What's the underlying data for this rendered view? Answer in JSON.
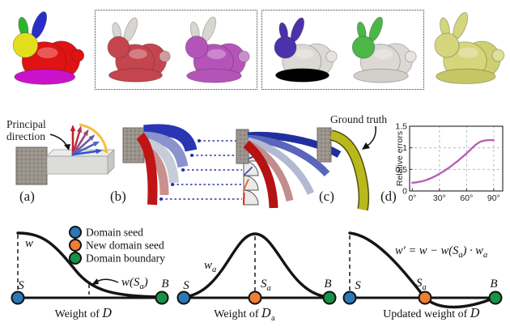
{
  "figure": {
    "background": "#ffffff"
  },
  "top_row": {
    "bunnies": [
      {
        "name": "segmented",
        "parts": {
          "ear_left": "#2db42d",
          "ear_right": "#2a2ec8",
          "head": "#e3df1d",
          "body": "#df1313",
          "rear": "#df1313",
          "belly": "#cb12cb",
          "tail": "#df1313"
        }
      },
      {
        "name": "red",
        "parts": {
          "ear_left": "#d9d5d1",
          "ear_right": "#d9d5d1",
          "head": "#c4454e",
          "body": "#c4454e",
          "rear": "#c4454e",
          "belly": "#c4454e",
          "tail": "#cf9ba0"
        }
      },
      {
        "name": "magenta",
        "parts": {
          "ear_left": "#d9d5d1",
          "ear_right": "#d9d5d1",
          "head": "#b554b8",
          "body": "#b554b8",
          "rear": "#b554b8",
          "belly": "#b554b8",
          "tail": "#c98fcb"
        }
      },
      {
        "name": "blue-head",
        "parts": {
          "ear_left": "#4b32aa",
          "ear_right": "#4b32aa",
          "head": "#4b32aa",
          "body": "#dcd8d4",
          "rear": "#dcd8d4",
          "belly": "#d2cecа",
          "tail": "#e6e3e0"
        }
      },
      {
        "name": "green-head",
        "parts": {
          "ear_left": "#4cb647",
          "ear_right": "#4cb647",
          "head": "#4cb647",
          "body": "#dcd8d4",
          "rear": "#dcd8d4",
          "belly": "#d2ceca",
          "tail": "#e6e3e0"
        }
      },
      {
        "name": "yellow",
        "parts": {
          "ear_left": "#d5d57c",
          "ear_right": "#d5d57c",
          "head": "#d5d57c",
          "body": "#d5d57c",
          "rear": "#cfcf72",
          "belly": "#c6c666",
          "tail": "#dfdf96"
        }
      }
    ]
  },
  "middle_row": {
    "panel_labels": [
      "(a)",
      "(b)",
      "(c)",
      "(d)"
    ],
    "panel_a": {
      "annotation": {
        "line1": "Principal",
        "line2": "direction"
      },
      "arrow_colors": [
        "#c81e1e",
        "#bb3050",
        "#9a4a80",
        "#715ba6",
        "#4e62c2",
        "#3052cf"
      ],
      "arrow_angles_deg": [
        90,
        74,
        58,
        42,
        26,
        8
      ],
      "rotation_arc_color": "#f2c23e"
    },
    "panel_b": {
      "beam_colors": [
        "#2a35b4",
        "#8a93cd",
        "#c7ccd9",
        "#c9908f",
        "#bf1515"
      ],
      "connector_color": "#2633a8",
      "gauges": [
        {
          "angle": 3,
          "color": "#1d2a66"
        },
        {
          "angle": 25,
          "color": "#2936ae"
        },
        {
          "angle": 45,
          "color": "#3d52c4"
        },
        {
          "angle": 66,
          "color": "#e2622d"
        },
        {
          "angle": 88,
          "color": "#cc1212"
        }
      ]
    },
    "panel_c": {
      "annotation": "Ground truth",
      "beam_colors": [
        "#212f9e",
        "#5a66bb",
        "#b2bad2",
        "#c18d8d",
        "#b51212"
      ],
      "ground_truth_color": "#b9b91e"
    }
  },
  "chart_data": {
    "type": "line",
    "title": "",
    "xlabel": "",
    "ylabel": "Relative errors",
    "x": [
      0,
      5,
      10,
      15,
      20,
      25,
      30,
      35,
      40,
      45,
      50,
      55,
      60,
      65,
      70,
      75,
      80,
      85,
      90
    ],
    "y": [
      0.19,
      0.2,
      0.22,
      0.25,
      0.29,
      0.34,
      0.4,
      0.46,
      0.53,
      0.61,
      0.69,
      0.78,
      0.87,
      0.97,
      1.07,
      1.14,
      1.17,
      1.18,
      1.18
    ],
    "x_ticks": [
      0,
      30,
      60,
      90
    ],
    "x_tick_labels": [
      "0°",
      "30°",
      "60°",
      "90°"
    ],
    "y_ticks": [
      0,
      0.5,
      1,
      1.5
    ],
    "y_tick_labels": [
      "0",
      "0.5",
      "1",
      "1.5"
    ],
    "xlim": [
      -3,
      100
    ],
    "ylim": [
      0,
      1.5
    ],
    "grid": "dashed",
    "legend_position": "none",
    "line_color": "#b55bb3"
  },
  "bottom_row": {
    "legend": {
      "items": [
        {
          "label": "Domain seed",
          "color": "#2a78b8"
        },
        {
          "label": "New domain seed",
          "color": "#ef7d32"
        },
        {
          "label": "Domain boundary",
          "color": "#169347"
        }
      ]
    },
    "diagram1": {
      "curve_label": "w",
      "seed_label": "S",
      "boundary_label": "B",
      "annotation": {
        "p1": "w(S",
        "sub": "a",
        "p2": ")"
      },
      "caption": {
        "text": "Weight of ",
        "domain": "D"
      }
    },
    "diagram2": {
      "curve_label": {
        "base": "w",
        "sub": "a"
      },
      "seed_label": "S",
      "new_seed_label": {
        "base": "S",
        "sub": "a"
      },
      "boundary_label": "B",
      "caption": {
        "text": "Weight of ",
        "domain": "D",
        "domain_sub": "a"
      }
    },
    "diagram3": {
      "formula": {
        "p1": "w′ = w − w(S",
        "s1": "a",
        "p2": ") · w",
        "s2": "a"
      },
      "seed_label": "S",
      "new_seed_label": {
        "base": "S",
        "sub": "a"
      },
      "boundary_label": "B",
      "caption": {
        "text": "Updated weight of ",
        "domain": "D"
      }
    }
  }
}
